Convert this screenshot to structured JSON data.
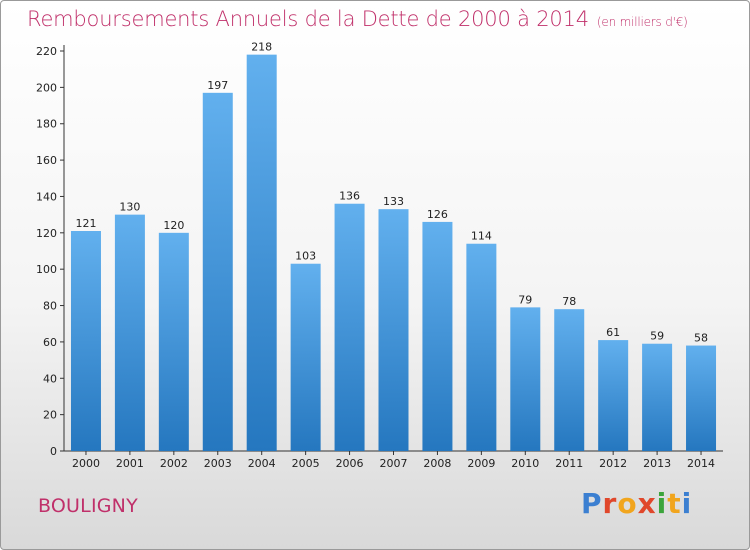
{
  "title": "Remboursements Annuels de la Dette de 2000 à 2014",
  "subtitle": "(en milliers d'€)",
  "commune": "BOULIGNY",
  "logo_text": "Proxiti",
  "colors": {
    "title": "#c0306a",
    "bar_top": "#62b0ee",
    "bar_bottom": "#2577bf"
  },
  "chart_data": {
    "type": "bar",
    "categories": [
      "2000",
      "2001",
      "2002",
      "2003",
      "2004",
      "2005",
      "2006",
      "2007",
      "2008",
      "2009",
      "2010",
      "2011",
      "2012",
      "2013",
      "2014"
    ],
    "values": [
      121,
      130,
      120,
      197,
      218,
      103,
      136,
      133,
      126,
      114,
      79,
      78,
      61,
      59,
      58
    ],
    "title": "Remboursements Annuels de la Dette de 2000 à 2014",
    "ylim": [
      0,
      220
    ],
    "yticks": [
      0,
      20,
      40,
      60,
      80,
      100,
      120,
      140,
      160,
      180,
      200,
      220
    ],
    "grid": false,
    "legend": "none"
  }
}
